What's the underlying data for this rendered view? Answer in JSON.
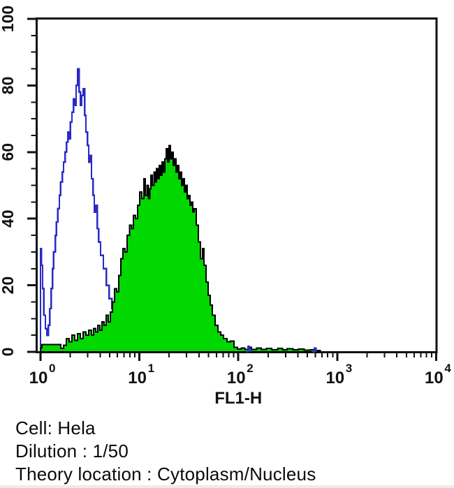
{
  "chart_data": {
    "type": "area",
    "title": "",
    "xlabel": "FL1-H",
    "ylabel": "",
    "x_scale": "log",
    "xlim": [
      1,
      10000
    ],
    "ylim": [
      0,
      100
    ],
    "x_tick_base": "10",
    "x_tick_exponents": [
      0,
      1,
      2,
      3,
      4
    ],
    "y_ticks": [
      0,
      20,
      40,
      60,
      80,
      100
    ],
    "y_minor_step": 5,
    "grid": false,
    "legend": "none",
    "colors": {
      "control_line": "#2a2ac4",
      "sample_fill": "#00d800",
      "sample_outline": "#000000",
      "axis": "#111111",
      "text": "#111111"
    },
    "series": [
      {
        "name": "control-open-histogram",
        "style": "line",
        "color": "#2a2ac4",
        "points": [
          [
            1.0,
            0
          ],
          [
            1.0,
            31
          ],
          [
            1.02,
            26
          ],
          [
            1.05,
            19
          ],
          [
            1.08,
            11
          ],
          [
            1.12,
            7
          ],
          [
            1.16,
            5
          ],
          [
            1.2,
            8
          ],
          [
            1.24,
            13
          ],
          [
            1.28,
            19
          ],
          [
            1.32,
            25
          ],
          [
            1.36,
            30
          ],
          [
            1.41,
            35
          ],
          [
            1.45,
            39
          ],
          [
            1.5,
            43
          ],
          [
            1.55,
            47
          ],
          [
            1.6,
            51
          ],
          [
            1.66,
            54
          ],
          [
            1.71,
            57
          ],
          [
            1.77,
            60
          ],
          [
            1.83,
            63
          ],
          [
            1.89,
            66
          ],
          [
            1.95,
            64
          ],
          [
            2.01,
            69
          ],
          [
            2.08,
            72
          ],
          [
            2.15,
            76
          ],
          [
            2.22,
            74
          ],
          [
            2.29,
            80
          ],
          [
            2.37,
            85
          ],
          [
            2.45,
            78
          ],
          [
            2.53,
            74
          ],
          [
            2.61,
            77
          ],
          [
            2.7,
            79
          ],
          [
            2.79,
            71
          ],
          [
            2.88,
            66
          ],
          [
            2.98,
            62
          ],
          [
            3.07,
            57
          ],
          [
            3.18,
            59
          ],
          [
            3.28,
            52
          ],
          [
            3.39,
            47
          ],
          [
            3.5,
            42
          ],
          [
            3.62,
            44
          ],
          [
            3.74,
            37
          ],
          [
            3.86,
            33
          ],
          [
            4.05,
            29
          ],
          [
            4.32,
            25
          ],
          [
            4.62,
            20
          ],
          [
            4.93,
            16
          ],
          [
            5.26,
            13
          ],
          [
            5.61,
            11
          ],
          [
            5.99,
            9
          ],
          [
            6.39,
            6
          ],
          [
            6.93,
            4
          ],
          [
            7.65,
            2
          ],
          [
            8.71,
            1
          ],
          [
            10.1,
            0.5
          ],
          [
            10.9,
            0
          ]
        ]
      },
      {
        "name": "stained-filled-histogram",
        "style": "area",
        "color": "#000000",
        "fill": "#00d800",
        "points": [
          [
            1.0,
            1.2
          ],
          [
            1.03,
            2.2
          ],
          [
            1.55,
            2.2
          ],
          [
            1.6,
            1
          ],
          [
            1.71,
            2
          ],
          [
            1.83,
            4
          ],
          [
            1.95,
            3
          ],
          [
            2.08,
            5
          ],
          [
            2.22,
            3.5
          ],
          [
            2.37,
            5.5
          ],
          [
            2.53,
            4
          ],
          [
            2.7,
            6
          ],
          [
            2.88,
            5
          ],
          [
            3.07,
            6.5
          ],
          [
            3.28,
            5
          ],
          [
            3.45,
            7
          ],
          [
            3.62,
            6
          ],
          [
            3.8,
            8
          ],
          [
            3.98,
            6.5
          ],
          [
            4.18,
            9
          ],
          [
            4.39,
            8
          ],
          [
            4.62,
            11
          ],
          [
            4.85,
            9
          ],
          [
            5.09,
            12
          ],
          [
            5.35,
            15
          ],
          [
            5.61,
            19
          ],
          [
            5.9,
            18
          ],
          [
            6.19,
            23
          ],
          [
            6.5,
            28
          ],
          [
            6.83,
            31
          ],
          [
            7.18,
            30
          ],
          [
            7.54,
            35
          ],
          [
            7.92,
            38
          ],
          [
            8.32,
            37
          ],
          [
            8.71,
            41
          ],
          [
            9.14,
            40
          ],
          [
            9.6,
            44
          ],
          [
            10.1,
            48
          ],
          [
            10.6,
            46
          ],
          [
            11.1,
            52
          ],
          [
            11.5,
            47
          ],
          [
            11.9,
            50
          ],
          [
            12.3,
            46
          ],
          [
            12.7,
            49
          ],
          [
            13.1,
            53
          ],
          [
            13.5,
            50
          ],
          [
            14.0,
            54
          ],
          [
            14.4,
            51
          ],
          [
            14.9,
            55
          ],
          [
            15.4,
            52
          ],
          [
            15.9,
            56
          ],
          [
            16.4,
            53
          ],
          [
            17.0,
            57
          ],
          [
            17.5,
            54
          ],
          [
            18.1,
            58
          ],
          [
            18.7,
            61
          ],
          [
            19.3,
            57
          ],
          [
            20.0,
            62
          ],
          [
            20.6,
            58
          ],
          [
            21.3,
            60
          ],
          [
            22.0,
            56
          ],
          [
            22.7,
            58
          ],
          [
            23.5,
            54
          ],
          [
            24.3,
            56
          ],
          [
            25.1,
            52
          ],
          [
            25.9,
            54
          ],
          [
            26.8,
            50
          ],
          [
            27.6,
            52
          ],
          [
            28.6,
            48
          ],
          [
            29.5,
            50
          ],
          [
            30.5,
            46
          ],
          [
            31.5,
            47
          ],
          [
            32.5,
            44
          ],
          [
            33.6,
            45
          ],
          [
            34.7,
            42
          ],
          [
            35.9,
            43
          ],
          [
            37.7,
            38
          ],
          [
            39.5,
            33
          ],
          [
            41.5,
            28
          ],
          [
            43.6,
            31
          ],
          [
            45.1,
            26
          ],
          [
            47.3,
            21
          ],
          [
            49.7,
            17
          ],
          [
            52.2,
            14
          ],
          [
            54.8,
            11
          ],
          [
            58.5,
            8
          ],
          [
            62.4,
            6
          ],
          [
            66.6,
            5
          ],
          [
            71.1,
            4
          ],
          [
            77.1,
            3
          ],
          [
            83.6,
            3.2
          ],
          [
            90.7,
            1.4
          ],
          [
            98.4,
            0.8
          ],
          [
            107,
            1.2
          ],
          [
            116,
            0.7
          ],
          [
            126,
            1.4
          ],
          [
            136,
            0.7
          ],
          [
            153,
            1.2
          ],
          [
            171,
            0.7
          ],
          [
            192,
            1.1
          ],
          [
            218,
            0.6
          ],
          [
            249,
            1.0
          ],
          [
            279,
            0.6
          ],
          [
            312,
            0.9
          ],
          [
            356,
            0.6
          ],
          [
            405,
            0.8
          ],
          [
            462,
            0.5
          ],
          [
            535,
            0.6
          ],
          [
            609,
            0.4
          ],
          [
            671,
            0
          ]
        ]
      },
      {
        "name": "control-baseline-noise",
        "style": "line",
        "color": "#2a2ac4",
        "points": [
          [
            120,
            0
          ],
          [
            126,
            1.6
          ],
          [
            129,
            0.8
          ],
          [
            133,
            0
          ],
          null,
          [
            560,
            0
          ],
          [
            589,
            1.1
          ],
          [
            610,
            0
          ]
        ]
      }
    ]
  },
  "annotation": {
    "cell_line": "Cell: Hela",
    "dilution": "Dilution : 1/50",
    "theory_location": "Theory location : Cytoplasm/Nucleus"
  }
}
